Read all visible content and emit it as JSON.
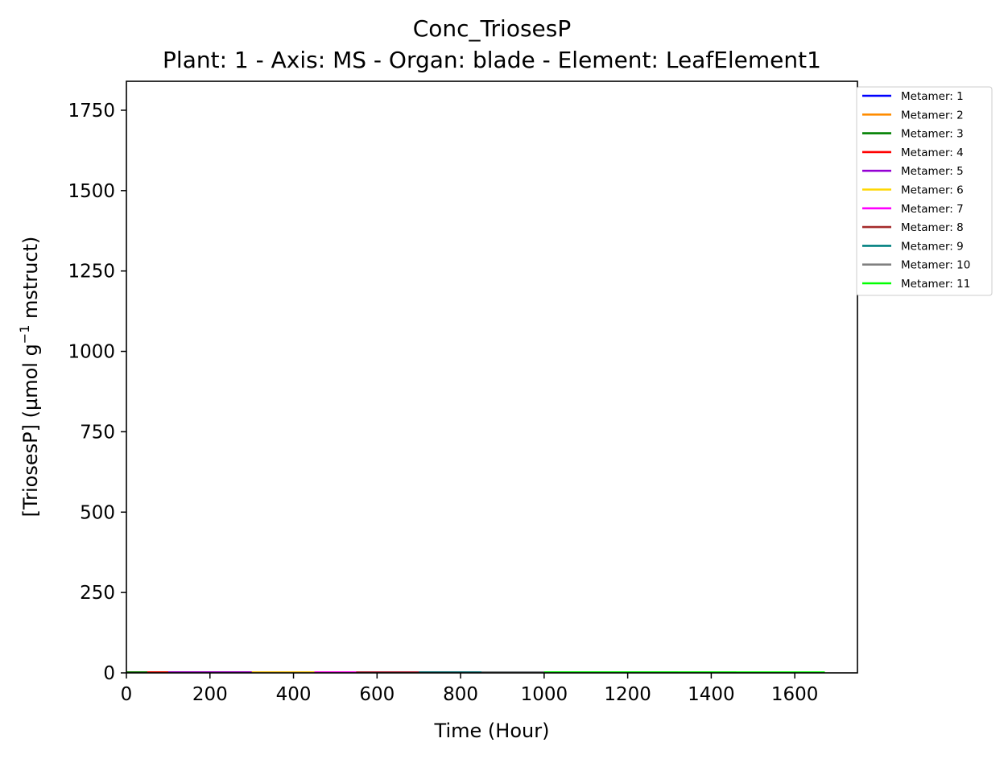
{
  "chart_data": {
    "type": "line",
    "title": "Conc_TriosesP",
    "subtitle": "Plant: 1 - Axis: MS - Organ: blade - Element: LeafElement1",
    "xlabel": "Time (Hour)",
    "ylabel_main": "[TriosesP] (µmol g",
    "ylabel_sup": "−1",
    "ylabel_tail": " mstruct)",
    "xlim": [
      0,
      1750
    ],
    "ylim": [
      0,
      1840
    ],
    "x_ticks": [
      0,
      200,
      400,
      600,
      800,
      1000,
      1200,
      1400,
      1600
    ],
    "y_ticks": [
      0,
      250,
      500,
      750,
      1000,
      1250,
      1500,
      1750
    ],
    "grid": false,
    "legend_position": "outside top-right",
    "series": [
      {
        "name": "Metamer: 1",
        "color": "#0000ff",
        "x": [
          0,
          100,
          200,
          300,
          380
        ],
        "y": [
          2,
          2,
          2,
          2,
          2
        ]
      },
      {
        "name": "Metamer: 2",
        "color": "#ff8c00",
        "x": [
          0,
          150,
          300,
          470
        ],
        "y": [
          2,
          2,
          2,
          2
        ]
      },
      {
        "name": "Metamer: 3",
        "color": "#008000",
        "x": [
          0,
          200,
          400,
          560
        ],
        "y": [
          2,
          2,
          2,
          2
        ]
      },
      {
        "name": "Metamer: 4",
        "color": "#ff0000",
        "x": [
          50,
          300,
          500,
          660
        ],
        "y": [
          2,
          2,
          2,
          2
        ]
      },
      {
        "name": "Metamer: 5",
        "color": "#9400d3",
        "x": [
          100,
          400,
          600,
          780
        ],
        "y": [
          2,
          2,
          2,
          2
        ]
      },
      {
        "name": "Metamer: 6",
        "color": "#ffd700",
        "x": [
          300,
          600,
          800,
          900
        ],
        "y": [
          2,
          2,
          2,
          2
        ]
      },
      {
        "name": "Metamer: 7",
        "color": "#ff00ff",
        "x": [
          450,
          700,
          900,
          1020
        ],
        "y": [
          2,
          2,
          2,
          2
        ]
      },
      {
        "name": "Metamer: 8",
        "color": "#a52a2a",
        "x": [
          550,
          800,
          1000,
          1150
        ],
        "y": [
          2,
          2,
          2,
          2
        ]
      },
      {
        "name": "Metamer: 9",
        "color": "#008080",
        "x": [
          700,
          1000,
          1200,
          1320
        ],
        "y": [
          2,
          2,
          2,
          2
        ]
      },
      {
        "name": "Metamer: 10",
        "color": "#808080",
        "x": [
          850,
          1100,
          1300,
          1460
        ],
        "y": [
          2,
          2,
          2,
          2
        ]
      },
      {
        "name": "Metamer: 11",
        "color": "#00ff00",
        "x": [
          1000,
          1250,
          1450,
          1672
        ],
        "y": [
          2,
          2,
          2,
          2
        ]
      }
    ]
  }
}
